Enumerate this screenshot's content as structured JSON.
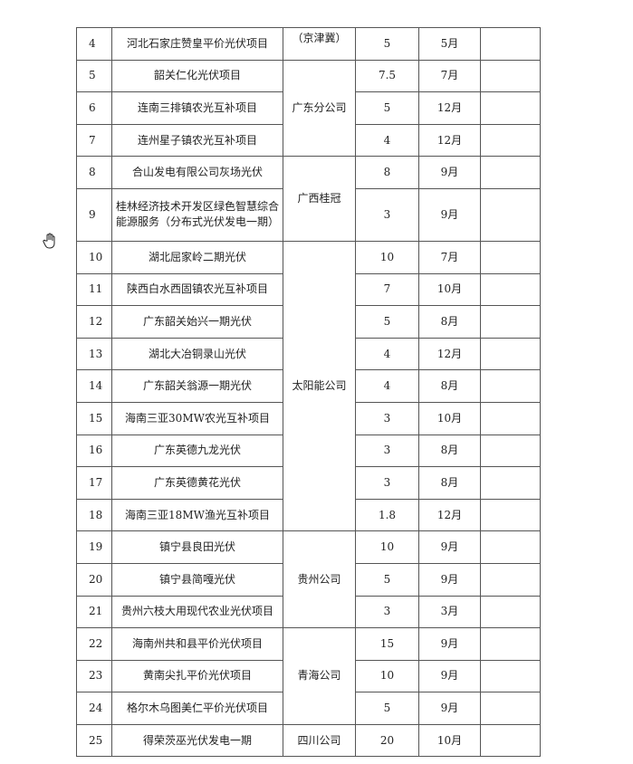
{
  "groups": [
    {
      "company": "（京津冀）",
      "company_align": "top",
      "rows": [
        {
          "no": "4",
          "name": "河北石家庄赞皇平价光伏项目",
          "capacity": "5",
          "month": "5月",
          "remark": ""
        }
      ]
    },
    {
      "company": "广东分公司",
      "rows": [
        {
          "no": "5",
          "name": "韶关仁化光伏项目",
          "capacity": "7.5",
          "month": "7月",
          "remark": ""
        },
        {
          "no": "6",
          "name": "连南三排镇农光互补项目",
          "capacity": "5",
          "month": "12月",
          "remark": ""
        },
        {
          "no": "7",
          "name": "连州星子镇农光互补项目",
          "capacity": "4",
          "month": "12月",
          "remark": ""
        }
      ]
    },
    {
      "company": "广西桂冠",
      "rows": [
        {
          "no": "8",
          "name": "合山发电有限公司灰场光伏",
          "capacity": "8",
          "month": "9月",
          "remark": ""
        },
        {
          "no": "9",
          "name": "桂林经济技术开发区绿色智慧综合能源服务（分布式光伏发电一期）",
          "capacity": "3",
          "month": "9月",
          "remark": ""
        }
      ]
    },
    {
      "company": "太阳能公司",
      "rows": [
        {
          "no": "10",
          "name": "湖北屈家岭二期光伏",
          "capacity": "10",
          "month": "7月",
          "remark": ""
        },
        {
          "no": "11",
          "name": "陕西白水西固镇农光互补项目",
          "capacity": "7",
          "month": "10月",
          "remark": ""
        },
        {
          "no": "12",
          "name": "广东韶关始兴一期光伏",
          "capacity": "5",
          "month": "8月",
          "remark": ""
        },
        {
          "no": "13",
          "name": "湖北大冶铜录山光伏",
          "capacity": "4",
          "month": "12月",
          "remark": ""
        },
        {
          "no": "14",
          "name": "广东韶关翁源一期光伏",
          "capacity": "4",
          "month": "8月",
          "remark": ""
        },
        {
          "no": "15",
          "name": "海南三亚30MW农光互补项目",
          "capacity": "3",
          "month": "10月",
          "remark": ""
        },
        {
          "no": "16",
          "name": "广东英德九龙光伏",
          "capacity": "3",
          "month": "8月",
          "remark": ""
        },
        {
          "no": "17",
          "name": "广东英德黄花光伏",
          "capacity": "3",
          "month": "8月",
          "remark": ""
        },
        {
          "no": "18",
          "name": "海南三亚18MW渔光互补项目",
          "capacity": "1.8",
          "month": "12月",
          "remark": ""
        }
      ]
    },
    {
      "company": "贵州公司",
      "rows": [
        {
          "no": "19",
          "name": "镇宁县良田光伏",
          "capacity": "10",
          "month": "9月",
          "remark": ""
        },
        {
          "no": "20",
          "name": "镇宁县简嘎光伏",
          "capacity": "5",
          "month": "9月",
          "remark": ""
        },
        {
          "no": "21",
          "name": "贵州六枝大用现代农业光伏项目",
          "capacity": "3",
          "month": "3月",
          "remark": ""
        }
      ]
    },
    {
      "company": "青海公司",
      "rows": [
        {
          "no": "22",
          "name": "海南州共和县平价光伏项目",
          "capacity": "15",
          "month": "9月",
          "remark": ""
        },
        {
          "no": "23",
          "name": "黄南尖扎平价光伏项目",
          "capacity": "10",
          "month": "9月",
          "remark": ""
        },
        {
          "no": "24",
          "name": "格尔木乌图美仁平价光伏项目",
          "capacity": "5",
          "month": "9月",
          "remark": ""
        }
      ]
    },
    {
      "company": "四川公司",
      "rows": [
        {
          "no": "25",
          "name": "得荣茨巫光伏发电一期",
          "capacity": "20",
          "month": "10月",
          "remark": ""
        }
      ]
    }
  ],
  "cursor": {
    "icon": "hand-pointer-icon"
  }
}
